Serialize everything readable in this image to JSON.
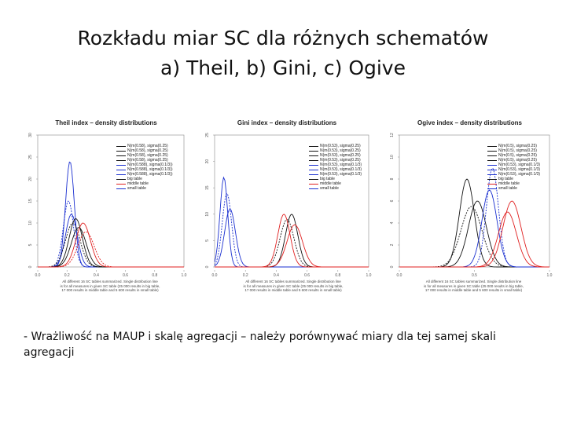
{
  "slide": {
    "title_line1": "Rozkładu miar SC dla różnych schematów",
    "title_line2": "a) Theil, b) Gini, c) Ogive",
    "bullet": "- Wrażliwość na MAUP i skalę agregacji – należy porównywać miary dla tej samej skali agregacji"
  },
  "colors": {
    "black": "#111111",
    "red": "#e02020",
    "blue": "#1a2fd0",
    "dashed_black": "#333333"
  },
  "panels": [
    {
      "title": "Theil index – density distributions",
      "caption_line1": "All different 16 SC tables summarized. Single distribution line",
      "caption_line2": "is for all measures in given SC table (25 000 results in big table,",
      "caption_line3": "17 000 results in middle table and 5 600 results in small table)",
      "legend": [
        "N(m(0.58), sigma(0.25)",
        "N(m(0.58), sigma(0.25)",
        "N(m(0.58), sigma(0.25)",
        "N(m(0.58), sigma(0.25)",
        "N(m(0.588), sigma(0.1/3))",
        "N(m(0.588), sigma(0.1/3))",
        "N(m(0.588), sigma(0.1/3))",
        "big table",
        "middle table",
        "small table"
      ],
      "chart_data": {
        "type": "line",
        "xlim": [
          0.0,
          1.0
        ],
        "ylim": [
          0,
          30
        ],
        "x_ticks": [
          "0.0",
          "0.2",
          "0.4",
          "0.6",
          "0.8",
          "1.0"
        ],
        "y_ticks": [
          "0",
          "5",
          "10",
          "15",
          "20",
          "25",
          "30"
        ],
        "series": [
          {
            "color": "blue",
            "peak_x": 0.22,
            "peak_y": 24,
            "width": 0.03
          },
          {
            "color": "blue",
            "peak_x": 0.21,
            "peak_y": 15,
            "width": 0.035
          },
          {
            "color": "blue",
            "peak_x": 0.23,
            "peak_y": 12,
            "width": 0.04
          },
          {
            "color": "black",
            "peak_x": 0.26,
            "peak_y": 11,
            "width": 0.045
          },
          {
            "color": "black",
            "peak_x": 0.24,
            "peak_y": 10,
            "width": 0.05
          },
          {
            "color": "black",
            "peak_x": 0.28,
            "peak_y": 9,
            "width": 0.05
          },
          {
            "color": "red",
            "peak_x": 0.31,
            "peak_y": 10,
            "width": 0.05
          },
          {
            "color": "red",
            "peak_x": 0.33,
            "peak_y": 8,
            "width": 0.055
          }
        ]
      }
    },
    {
      "title": "Gini index – density distributions",
      "caption_line1": "All different 16 SC tables summarized. Single distribution line",
      "caption_line2": "is for all measures in given SC table (25 000 results in big table,",
      "caption_line3": "17 000 results in middle table and 5 600 results in small table)",
      "legend": [
        "N(m(0.53), sigma(0.25)",
        "N(m(0.53), sigma(0.25)",
        "N(m(0.53), sigma(0.25)",
        "N(m(0.53), sigma(0.25)",
        "N(m(0.53), sigma(0.1/3)",
        "N(m(0.53), sigma(0.1/3)",
        "N(m(0.53), sigma(0.1/3)",
        "big table",
        "middle table",
        "small table"
      ],
      "chart_data": {
        "type": "line",
        "xlim": [
          0.0,
          1.0
        ],
        "ylim": [
          0,
          25
        ],
        "x_ticks": [
          "0.0",
          "0.2",
          "0.4",
          "0.6",
          "0.8",
          "1.0"
        ],
        "y_ticks": [
          "0",
          "5",
          "10",
          "15",
          "20",
          "25"
        ],
        "series": [
          {
            "color": "blue",
            "peak_x": 0.06,
            "peak_y": 17,
            "width": 0.025
          },
          {
            "color": "blue",
            "peak_x": 0.08,
            "peak_y": 14,
            "width": 0.03
          },
          {
            "color": "blue",
            "peak_x": 0.1,
            "peak_y": 11,
            "width": 0.035
          },
          {
            "color": "black",
            "peak_x": 0.5,
            "peak_y": 10,
            "width": 0.04
          },
          {
            "color": "black",
            "peak_x": 0.47,
            "peak_y": 9,
            "width": 0.045
          },
          {
            "color": "red",
            "peak_x": 0.45,
            "peak_y": 10,
            "width": 0.04
          },
          {
            "color": "red",
            "peak_x": 0.52,
            "peak_y": 8,
            "width": 0.05
          }
        ]
      }
    },
    {
      "title": "Ogive index – density distributions",
      "caption_line1": "All different 16 SC tables summarized. Single distribution line",
      "caption_line2": "is for all measures in given SC table (25 000 results in big table,",
      "caption_line3": "17 000 results in middle table and 5 600 results in small table)",
      "legend": [
        "N(m(0.5), sigma(0.25)",
        "N(m(0.5), sigma(0.25)",
        "N(m(0.5), sigma(0.25)",
        "N(m(0.5), sigma(0.25)",
        "N(m(0.53), sigma(0.1/3)",
        "N(m(0.53), sigma(0.1/3)",
        "N(m(0.53), sigma(0.1/3)",
        "big table",
        "middle table",
        "small table"
      ],
      "chart_data": {
        "type": "line",
        "xlim": [
          0.0,
          1.0
        ],
        "ylim": [
          0,
          12
        ],
        "x_ticks": [
          "0.0",
          "0.5",
          "1.0"
        ],
        "y_ticks": [
          "0",
          "2",
          "4",
          "6",
          "8",
          "10",
          "12"
        ],
        "series": [
          {
            "color": "black",
            "peak_x": 0.52,
            "peak_y": 6,
            "width": 0.06
          },
          {
            "color": "black",
            "peak_x": 0.48,
            "peak_y": 5.5,
            "width": 0.07
          },
          {
            "color": "black",
            "peak_x": 0.45,
            "peak_y": 8,
            "width": 0.05
          },
          {
            "color": "blue",
            "peak_x": 0.6,
            "peak_y": 7,
            "width": 0.05
          },
          {
            "color": "blue",
            "peak_x": 0.62,
            "peak_y": 9,
            "width": 0.04
          },
          {
            "color": "red",
            "peak_x": 0.72,
            "peak_y": 5,
            "width": 0.06
          },
          {
            "color": "red",
            "peak_x": 0.75,
            "peak_y": 6,
            "width": 0.06
          }
        ]
      }
    }
  ]
}
